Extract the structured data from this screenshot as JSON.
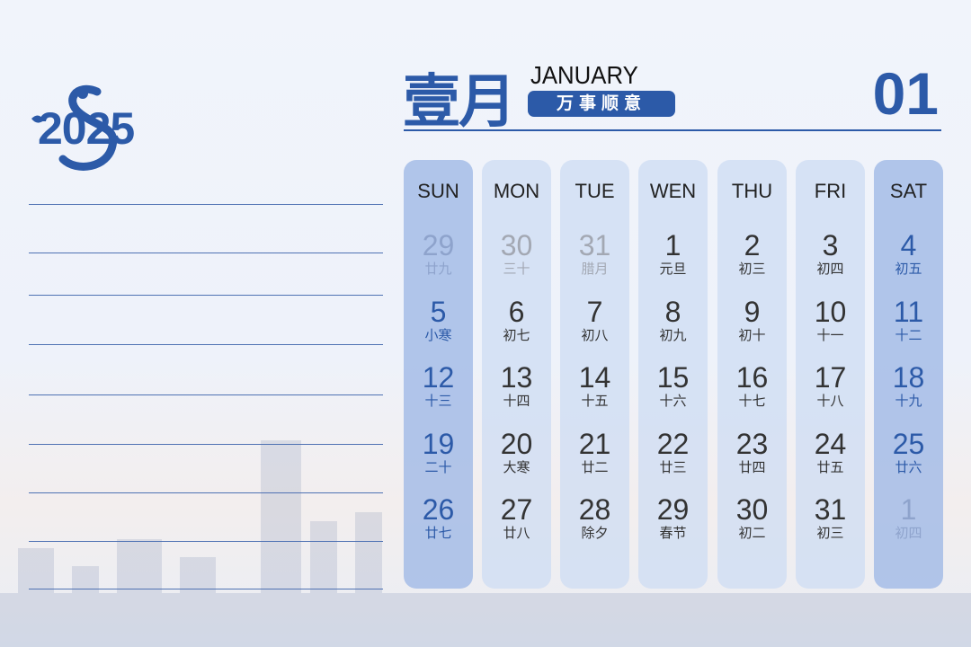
{
  "logo": {
    "year": "2025",
    "icon": "snake-icon"
  },
  "header": {
    "title_cn": "壹月",
    "title_en": "JANUARY",
    "motto": "万事顺意",
    "month_number": "01"
  },
  "colors": {
    "accent": "#2c5aa8",
    "column": "#cddcf3",
    "weekend_column": "#a0b9e6"
  },
  "weekdays": [
    "SUN",
    "MON",
    "TUE",
    "WEN",
    "THU",
    "FRI",
    "SAT"
  ],
  "weeks": [
    [
      {
        "d": "29",
        "l": "廿九",
        "muted": true
      },
      {
        "d": "30",
        "l": "三十",
        "muted": true
      },
      {
        "d": "31",
        "l": "腊月",
        "muted": true
      },
      {
        "d": "1",
        "l": "元旦"
      },
      {
        "d": "2",
        "l": "初三"
      },
      {
        "d": "3",
        "l": "初四"
      },
      {
        "d": "4",
        "l": "初五"
      }
    ],
    [
      {
        "d": "5",
        "l": "小寒"
      },
      {
        "d": "6",
        "l": "初七"
      },
      {
        "d": "7",
        "l": "初八"
      },
      {
        "d": "8",
        "l": "初九"
      },
      {
        "d": "9",
        "l": "初十"
      },
      {
        "d": "10",
        "l": "十一"
      },
      {
        "d": "11",
        "l": "十二"
      }
    ],
    [
      {
        "d": "12",
        "l": "十三"
      },
      {
        "d": "13",
        "l": "十四"
      },
      {
        "d": "14",
        "l": "十五"
      },
      {
        "d": "15",
        "l": "十六"
      },
      {
        "d": "16",
        "l": "十七"
      },
      {
        "d": "17",
        "l": "十八"
      },
      {
        "d": "18",
        "l": "十九"
      }
    ],
    [
      {
        "d": "19",
        "l": "二十"
      },
      {
        "d": "20",
        "l": "大寒"
      },
      {
        "d": "21",
        "l": "廿二"
      },
      {
        "d": "22",
        "l": "廿三"
      },
      {
        "d": "23",
        "l": "廿四"
      },
      {
        "d": "24",
        "l": "廿五"
      },
      {
        "d": "25",
        "l": "廿六"
      }
    ],
    [
      {
        "d": "26",
        "l": "廿七"
      },
      {
        "d": "27",
        "l": "廿八"
      },
      {
        "d": "28",
        "l": "除夕"
      },
      {
        "d": "29",
        "l": "春节"
      },
      {
        "d": "30",
        "l": "初二"
      },
      {
        "d": "31",
        "l": "初三"
      },
      {
        "d": "1",
        "l": "初四",
        "muted": true
      }
    ]
  ]
}
